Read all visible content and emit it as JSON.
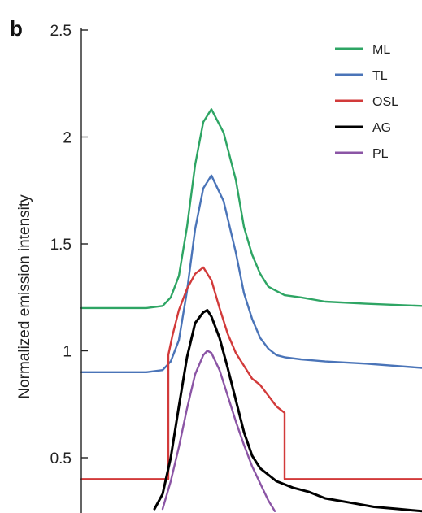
{
  "chart_data": {
    "type": "line",
    "panel_label": "b",
    "xlabel": "",
    "ylabel": "Normalized emission intensity",
    "ylim": [
      0.25,
      2.5
    ],
    "y_ticks": [
      {
        "value": 0.5,
        "label": "0.5"
      },
      {
        "value": 1,
        "label": "1"
      },
      {
        "value": 1.5,
        "label": "1.5"
      },
      {
        "value": 2,
        "label": "2"
      },
      {
        "value": 2.5,
        "label": "2.5"
      }
    ],
    "grid": false,
    "legend_position": "top-right",
    "series": [
      {
        "name": "ML",
        "color": "#2ea564",
        "x": [
          0,
          40,
          80,
          100,
          110,
          120,
          130,
          140,
          150,
          160,
          175,
          190,
          200,
          210,
          220,
          230,
          240,
          250,
          270,
          300,
          350,
          419
        ],
        "y": [
          1.2,
          1.2,
          1.2,
          1.21,
          1.25,
          1.35,
          1.58,
          1.87,
          2.07,
          2.13,
          2.02,
          1.8,
          1.58,
          1.45,
          1.36,
          1.3,
          1.28,
          1.26,
          1.25,
          1.23,
          1.22,
          1.21
        ]
      },
      {
        "name": "TL",
        "color": "#4a74b8",
        "x": [
          0,
          40,
          80,
          100,
          110,
          120,
          130,
          140,
          150,
          160,
          175,
          190,
          200,
          210,
          220,
          230,
          240,
          250,
          270,
          300,
          350,
          419
        ],
        "y": [
          0.9,
          0.9,
          0.9,
          0.91,
          0.95,
          1.05,
          1.28,
          1.57,
          1.76,
          1.82,
          1.7,
          1.46,
          1.27,
          1.15,
          1.06,
          1.01,
          0.98,
          0.97,
          0.96,
          0.95,
          0.94,
          0.92
        ]
      },
      {
        "name": "OSL",
        "color": "#d23a3a",
        "x": [
          0,
          107,
          107,
          112,
          120,
          130,
          140,
          150,
          160,
          170,
          180,
          190,
          200,
          210,
          220,
          230,
          240,
          250,
          250,
          419
        ],
        "y": [
          0.4,
          0.4,
          0.98,
          1.07,
          1.19,
          1.29,
          1.36,
          1.39,
          1.33,
          1.2,
          1.08,
          0.99,
          0.93,
          0.87,
          0.84,
          0.79,
          0.74,
          0.71,
          0.4,
          0.4
        ]
      },
      {
        "name": "AG",
        "color": "#000000",
        "x": [
          90,
          100,
          110,
          120,
          130,
          140,
          150,
          155,
          160,
          170,
          180,
          190,
          200,
          210,
          220,
          230,
          240,
          260,
          280,
          300,
          330,
          360,
          390,
          419
        ],
        "y": [
          0.26,
          0.33,
          0.5,
          0.74,
          0.97,
          1.13,
          1.18,
          1.19,
          1.16,
          1.06,
          0.92,
          0.77,
          0.62,
          0.51,
          0.45,
          0.42,
          0.39,
          0.36,
          0.34,
          0.31,
          0.29,
          0.27,
          0.26,
          0.25
        ]
      },
      {
        "name": "PL",
        "color": "#8b55a5",
        "x": [
          100,
          110,
          120,
          130,
          140,
          150,
          155,
          160,
          170,
          180,
          190,
          200,
          210,
          220,
          230,
          238
        ],
        "y": [
          0.26,
          0.39,
          0.55,
          0.73,
          0.89,
          0.98,
          1.0,
          0.99,
          0.91,
          0.79,
          0.67,
          0.56,
          0.46,
          0.38,
          0.3,
          0.25
        ]
      }
    ]
  }
}
